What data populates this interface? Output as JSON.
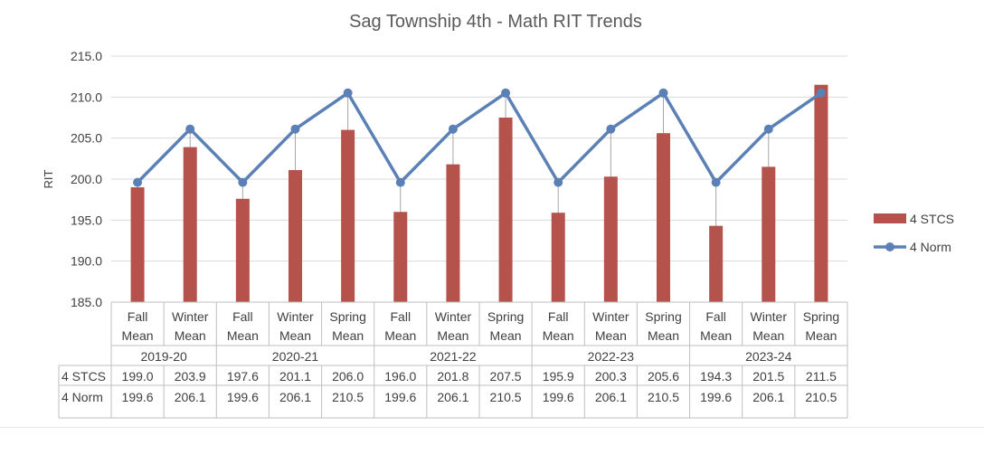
{
  "chart_data": {
    "type": "bar",
    "title": "Sag Township 4th - Math RIT Trends",
    "ylabel": "RIT",
    "xlabel": "",
    "ylim": [
      185.0,
      215.0
    ],
    "y_ticks": [
      "215.0",
      "210.0",
      "205.0",
      "200.0",
      "195.0",
      "190.0",
      "185.0"
    ],
    "grid": true,
    "legend_position": "right",
    "categories": [
      {
        "group": "2019-20",
        "line1": "Fall",
        "line2": "Mean"
      },
      {
        "group": "2019-20",
        "line1": "Winter",
        "line2": "Mean"
      },
      {
        "group": "2020-21",
        "line1": "Fall",
        "line2": "Mean"
      },
      {
        "group": "2020-21",
        "line1": "Winter",
        "line2": "Mean"
      },
      {
        "group": "2020-21",
        "line1": "Spring",
        "line2": "Mean"
      },
      {
        "group": "2021-22",
        "line1": "Fall",
        "line2": "Mean"
      },
      {
        "group": "2021-22",
        "line1": "Winter",
        "line2": "Mean"
      },
      {
        "group": "2021-22",
        "line1": "Spring",
        "line2": "Mean"
      },
      {
        "group": "2022-23",
        "line1": "Fall",
        "line2": "Mean"
      },
      {
        "group": "2022-23",
        "line1": "Winter",
        "line2": "Mean"
      },
      {
        "group": "2022-23",
        "line1": "Spring",
        "line2": "Mean"
      },
      {
        "group": "2023-24",
        "line1": "Fall",
        "line2": "Mean"
      },
      {
        "group": "2023-24",
        "line1": "Winter",
        "line2": "Mean"
      },
      {
        "group": "2023-24",
        "line1": "Spring",
        "line2": "Mean"
      }
    ],
    "groups": [
      "2019-20",
      "2020-21",
      "2021-22",
      "2022-23",
      "2023-24"
    ],
    "series": [
      {
        "name": "4 STCS",
        "kind": "bar",
        "color": "#b5524c",
        "values": [
          199.0,
          203.9,
          197.6,
          201.1,
          206.0,
          196.0,
          201.8,
          207.5,
          195.9,
          200.3,
          205.6,
          194.3,
          201.5,
          211.5
        ],
        "labels": [
          "199.0",
          "203.9",
          "197.6",
          "201.1",
          "206.0",
          "196.0",
          "201.8",
          "207.5",
          "195.9",
          "200.3",
          "205.6",
          "194.3",
          "201.5",
          "211.5"
        ]
      },
      {
        "name": "4 Norm",
        "kind": "line",
        "color": "#5b80b5",
        "values": [
          199.6,
          206.1,
          199.6,
          206.1,
          210.5,
          199.6,
          206.1,
          210.5,
          199.6,
          206.1,
          210.5,
          199.6,
          206.1,
          210.5
        ],
        "labels": [
          "199.6",
          "206.1",
          "199.6",
          "206.1",
          "210.5",
          "199.6",
          "206.1",
          "210.5",
          "199.6",
          "206.1",
          "210.5",
          "199.6",
          "206.1",
          "210.5"
        ]
      }
    ],
    "drop_lines": true,
    "data_table": true
  }
}
